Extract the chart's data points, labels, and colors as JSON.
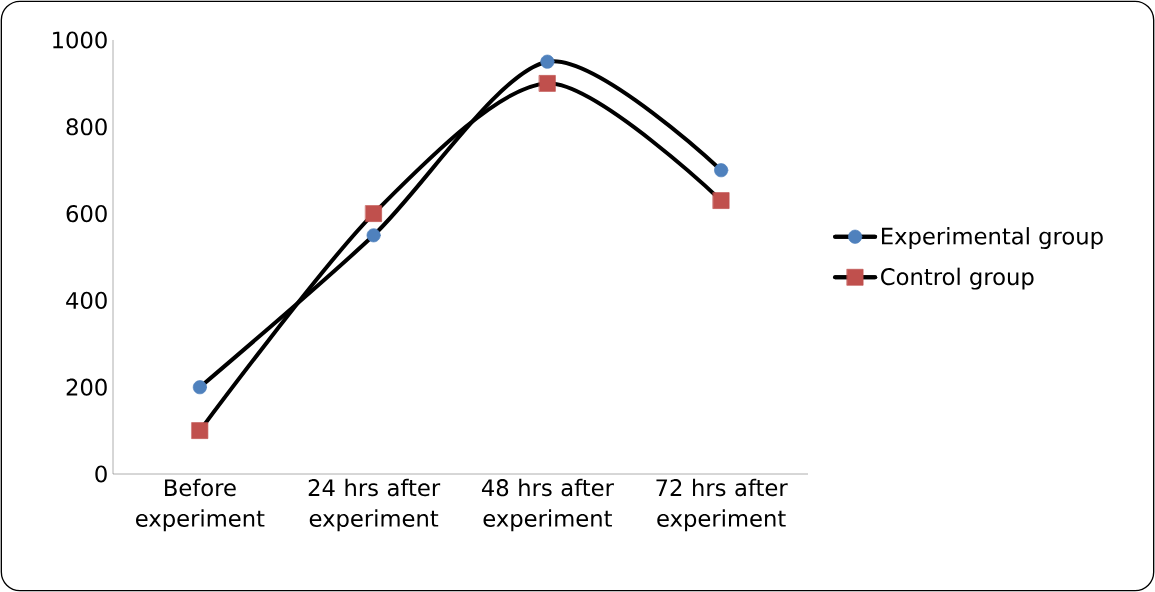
{
  "chart_data": {
    "type": "line",
    "categories": [
      "Before experiment",
      "24 hrs after experiment",
      "48 hrs after experiment",
      "72 hrs after experiment"
    ],
    "series": [
      {
        "name": "Experimental group",
        "color": "#4f81bd",
        "marker": "circle",
        "values": [
          200,
          550,
          950,
          700
        ]
      },
      {
        "name": "Control group",
        "color": "#c0504d",
        "marker": "square",
        "values": [
          100,
          600,
          900,
          630
        ]
      }
    ],
    "ylim": [
      0,
      1000
    ],
    "yticks": [
      0,
      200,
      400,
      600,
      800,
      1000
    ],
    "grid": false,
    "legend": "right",
    "line_style": "solid"
  }
}
